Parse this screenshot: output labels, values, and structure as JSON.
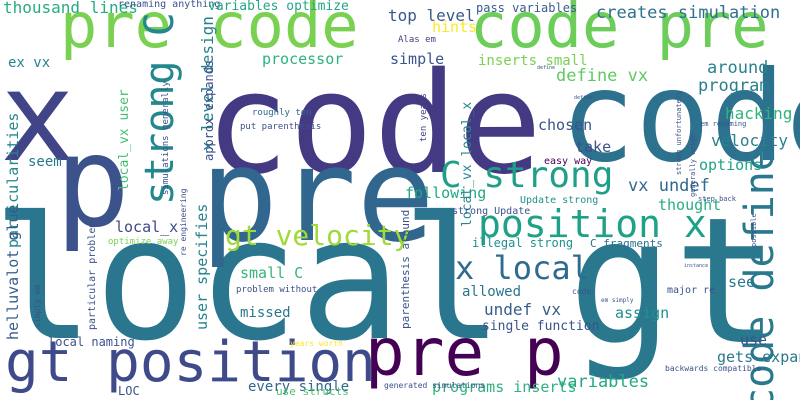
{
  "cloud": {
    "words": [
      {
        "text": "local",
        "color": "#2a768e"
      },
      {
        "text": "code",
        "color": "#443a83"
      },
      {
        "text": "pre",
        "color": "#31678e"
      },
      {
        "text": "gt",
        "color": "#2a788e"
      },
      {
        "text": "x",
        "color": "#414487"
      },
      {
        "text": "p",
        "color": "#3b528b"
      },
      {
        "text": "pre code",
        "color": "#7ad151"
      },
      {
        "text": "code pre",
        "color": "#6ccd5a"
      },
      {
        "text": "code p",
        "color": "#2c718e"
      },
      {
        "text": "pre p",
        "color": "#440154"
      },
      {
        "text": "gt position",
        "color": "#3e4a89"
      },
      {
        "text": "position x",
        "color": "#1fa187"
      },
      {
        "text": "x local",
        "color": "#2f6b8e"
      },
      {
        "text": "C strong",
        "color": "#1f9f88"
      },
      {
        "text": "gt velocity",
        "color": "#a0da39"
      },
      {
        "text": "code define",
        "color": "#2a788e"
      },
      {
        "text": "strong C",
        "color": "#23888e"
      },
      {
        "text": "thousand lines",
        "color": "#27ad81"
      },
      {
        "text": "renaming anything",
        "color": "#3b528b"
      },
      {
        "text": "variables optimize",
        "color": "#22a785"
      },
      {
        "text": "top level",
        "color": "#38588c"
      },
      {
        "text": "pass variables",
        "color": "#365c8d"
      },
      {
        "text": "creates simulation",
        "color": "#2c728e"
      },
      {
        "text": "hints",
        "color": "#fde725"
      },
      {
        "text": "Alas em",
        "color": "#433e85"
      },
      {
        "text": "x level design",
        "color": "#27808e"
      },
      {
        "text": "processor",
        "color": "#2db27d"
      },
      {
        "text": "simple",
        "color": "#39558c"
      },
      {
        "text": "inserts small",
        "color": "#7ad151"
      },
      {
        "text": "define vx",
        "color": "#5ec962"
      },
      {
        "text": "around",
        "color": "#26828e"
      },
      {
        "text": "program",
        "color": "#27808e"
      },
      {
        "text": "hacking",
        "color": "#2fb47c"
      },
      {
        "text": "velocity",
        "color": "#26828e"
      },
      {
        "text": "options",
        "color": "#20a386"
      },
      {
        "text": "chosen",
        "color": "#3a538b"
      },
      {
        "text": "take",
        "color": "#3b528b"
      },
      {
        "text": "vx undef",
        "color": "#31688e"
      },
      {
        "text": "following",
        "color": "#22a884"
      },
      {
        "text": "thought",
        "color": "#28ae80"
      },
      {
        "text": "seem",
        "color": "#2a788e"
      },
      {
        "text": "ex vx",
        "color": "#24868e"
      },
      {
        "text": "particularities",
        "color": "#24868e"
      },
      {
        "text": "local_vx user",
        "color": "#44bf70"
      },
      {
        "text": "approx expands",
        "color": "#3b528b"
      },
      {
        "text": "local_vx local_x",
        "color": "#24868e"
      },
      {
        "text": "helluvalot glue",
        "color": "#365c8d"
      },
      {
        "text": "user specifies",
        "color": "#26828e"
      },
      {
        "text": "undef vx",
        "color": "#365d8d"
      },
      {
        "text": "local_x",
        "color": "#3e4989"
      },
      {
        "text": "allowed",
        "color": "#2a768e"
      },
      {
        "text": "small C",
        "color": "#35b779"
      },
      {
        "text": "missed",
        "color": "#2a788e"
      },
      {
        "text": "assign",
        "color": "#21918c"
      },
      {
        "text": "see",
        "color": "#2a788e"
      },
      {
        "text": "use",
        "color": "#3a538b"
      },
      {
        "text": "gets expanded",
        "color": "#2a788e"
      },
      {
        "text": "variables",
        "color": "#22a884"
      },
      {
        "text": "programs inserts",
        "color": "#2db27d"
      },
      {
        "text": "LOC",
        "color": "#3b528b"
      },
      {
        "text": "every single",
        "color": "#31688e"
      },
      {
        "text": "use structs",
        "color": "#4ac16d"
      },
      {
        "text": "local naming",
        "color": "#3b528b"
      },
      {
        "text": "single function",
        "color": "#3a538b"
      },
      {
        "text": "parenthesis around",
        "color": "#3b528b"
      },
      {
        "text": "C fragments",
        "color": "#2c728e"
      },
      {
        "text": "illegal strong",
        "color": "#21918c"
      },
      {
        "text": "strong Update",
        "color": "#3a538b"
      },
      {
        "text": "Update strong",
        "color": "#21918c"
      },
      {
        "text": "easy way",
        "color": "#440154"
      },
      {
        "text": "major re",
        "color": "#3b528b"
      },
      {
        "text": "ten years",
        "color": "#414487"
      },
      {
        "text": "roughly ten",
        "color": "#31688e"
      },
      {
        "text": "put parenthesis",
        "color": "#3b528b"
      },
      {
        "text": "simulations generally",
        "color": "#3b528b"
      },
      {
        "text": "re engineering",
        "color": "#3b528b"
      },
      {
        "text": "optimize away",
        "color": "#7ad151"
      },
      {
        "text": "particular problem",
        "color": "#3b528b"
      },
      {
        "text": "simply em",
        "color": "#3b528b"
      },
      {
        "text": "problem without",
        "color": "#3b528b"
      },
      {
        "text": "years worth",
        "color": "#fde725"
      },
      {
        "text": "code",
        "color": "#3b528b"
      },
      {
        "text": "em simply",
        "color": "#3b528b"
      },
      {
        "text": "generated simulations",
        "color": "#3b528b"
      },
      {
        "text": "backwards compatible",
        "color": "#3b528b"
      },
      {
        "text": "strong unfortunately",
        "color": "#3b528b"
      },
      {
        "text": "generally weigh",
        "color": "#3b528b"
      },
      {
        "text": "em renaming",
        "color": "#3b528b"
      },
      {
        "text": "step back",
        "color": "#3b528b"
      },
      {
        "text": "possible",
        "color": "#3b528b"
      },
      {
        "text": "instance",
        "color": "#3b528b"
      },
      {
        "text": "define",
        "color": "#3b528b"
      },
      {
        "text": "define",
        "color": "#3b528b"
      }
    ]
  }
}
